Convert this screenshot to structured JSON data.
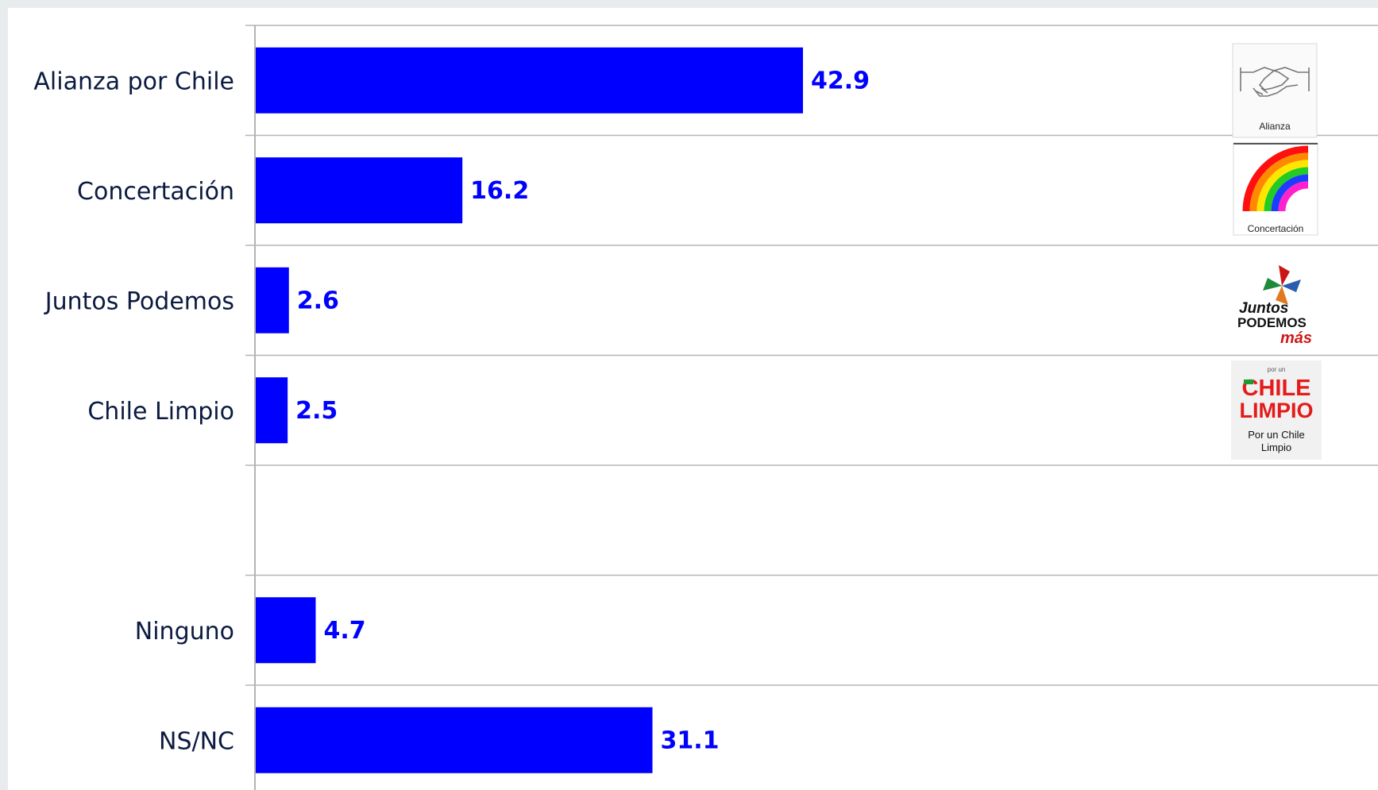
{
  "chart_data": {
    "type": "bar",
    "orientation": "horizontal",
    "title": "",
    "xlabel": "",
    "ylabel": "",
    "xlim": [
      0,
      100
    ],
    "grid": true,
    "bar_color": "#0000ff",
    "label_color": "#0000ff",
    "categories": [
      "Alianza por Chile",
      "Concertación",
      "Juntos Podemos",
      "Chile Limpio",
      "",
      "Ninguno",
      "NS/NC"
    ],
    "values": [
      42.9,
      16.2,
      2.6,
      2.5,
      null,
      4.7,
      31.1
    ],
    "value_labels": [
      "42.9",
      "16.2",
      "2.6",
      "2.5",
      "",
      "4.7",
      "31.1"
    ]
  },
  "logos": {
    "alianza": {
      "icon": "handshake-icon",
      "caption": "Alianza"
    },
    "concertacion": {
      "icon": "rainbow-icon",
      "caption": "Concertación"
    },
    "juntos": {
      "line1": "Juntos",
      "line2": "PODEMOS",
      "line3": "más",
      "icon": "pinwheel-icon"
    },
    "chile_limpio": {
      "small": "por un",
      "line1": "CHILE",
      "line2": "LIMPIO",
      "caption1": "Por un Chile",
      "caption2": "Limpio"
    }
  }
}
